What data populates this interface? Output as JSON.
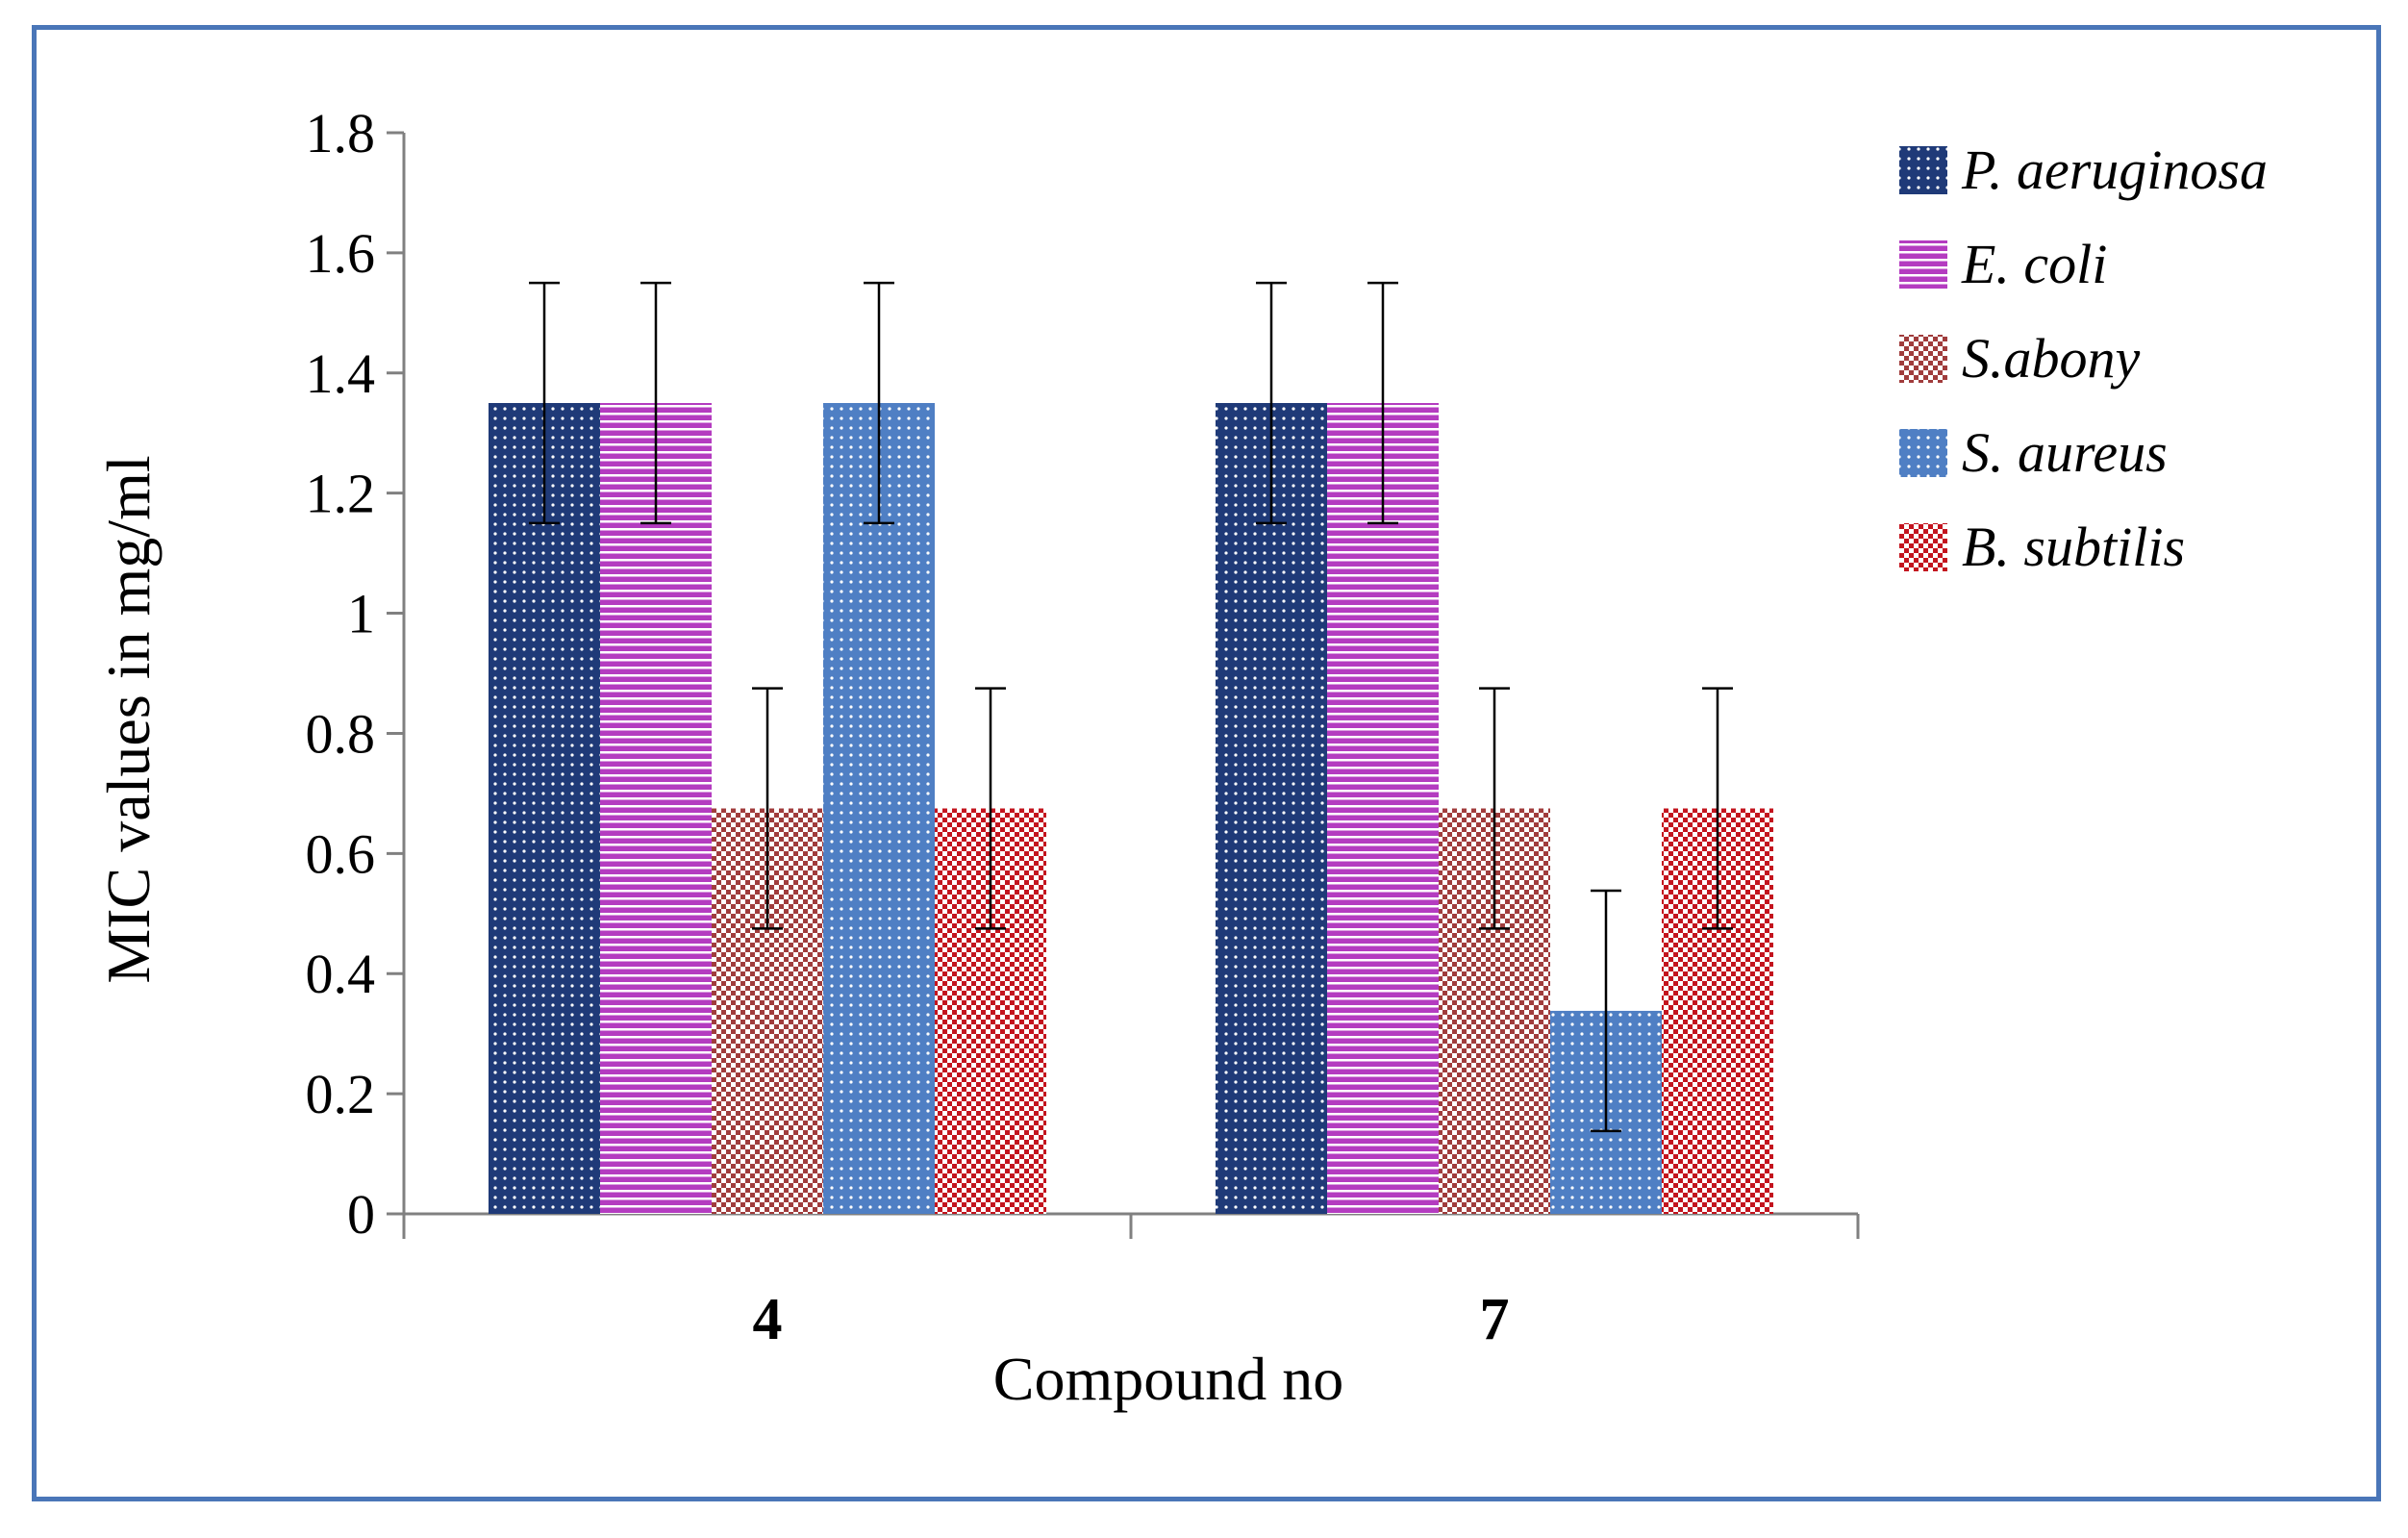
{
  "chart_data": {
    "type": "bar",
    "xlabel": "Compound no",
    "ylabel": "MIC values in mg/ml",
    "ylim": [
      0,
      1.8
    ],
    "yticks": [
      "0",
      "0.2",
      "0.4",
      "0.6",
      "0.8",
      "1",
      "1.2",
      "1.4",
      "1.6",
      "1.8"
    ],
    "categories": [
      "4",
      "7"
    ],
    "legend_position": "right",
    "series": [
      {
        "name": "P. aeruginosa",
        "values": [
          1.35,
          1.35
        ],
        "errors": [
          0.2,
          0.2
        ],
        "color": "#1f3a78",
        "pattern": "dots"
      },
      {
        "name": "E. coli",
        "values": [
          1.35,
          1.35
        ],
        "errors": [
          0.2,
          0.2
        ],
        "color": "#b43cc0",
        "pattern": "hlines"
      },
      {
        "name": "S.abony",
        "values": [
          0.675,
          0.675
        ],
        "errors": [
          0.2,
          0.2
        ],
        "color": "#a03c3c",
        "pattern": "checks"
      },
      {
        "name": "S. aureus",
        "values": [
          1.35,
          0.338
        ],
        "errors": [
          0.2,
          0.2
        ],
        "color": "#4f7fc4",
        "pattern": "dots"
      },
      {
        "name": "B. subtilis",
        "values": [
          0.675,
          0.675
        ],
        "errors": [
          0.2,
          0.2
        ],
        "color": "#c3141e",
        "pattern": "checks"
      }
    ]
  }
}
